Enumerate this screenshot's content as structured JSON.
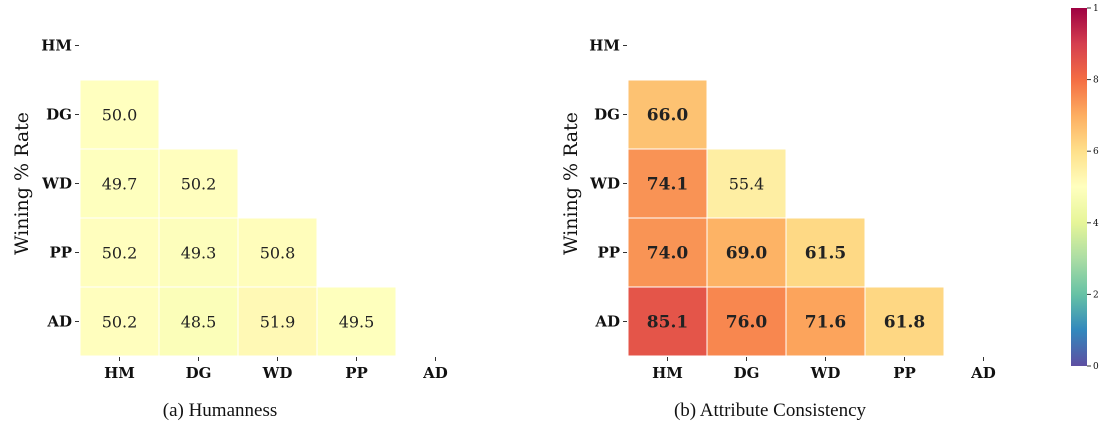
{
  "chart_data": [
    {
      "type": "heatmap",
      "caption": "(a) Humanness",
      "ylabel": "Wining % Rate",
      "row_labels": [
        "HM",
        "DG",
        "WD",
        "PP",
        "AD"
      ],
      "col_labels": [
        "HM",
        "DG",
        "WD",
        "PP",
        "AD"
      ],
      "bold_values": false,
      "values": [
        [
          null,
          null,
          null,
          null,
          null
        ],
        [
          50.0,
          null,
          null,
          null,
          null
        ],
        [
          49.7,
          50.2,
          null,
          null,
          null
        ],
        [
          50.2,
          49.3,
          50.8,
          null,
          null
        ],
        [
          50.2,
          48.5,
          51.9,
          49.5,
          null
        ]
      ]
    },
    {
      "type": "heatmap",
      "caption": "(b) Attribute Consistency",
      "ylabel": "Wining % Rate",
      "row_labels": [
        "HM",
        "DG",
        "WD",
        "PP",
        "AD"
      ],
      "col_labels": [
        "HM",
        "DG",
        "WD",
        "PP",
        "AD"
      ],
      "bold_values": true,
      "bold_threshold": 60,
      "values": [
        [
          null,
          null,
          null,
          null,
          null
        ],
        [
          66.0,
          null,
          null,
          null,
          null
        ],
        [
          74.1,
          55.4,
          null,
          null,
          null
        ],
        [
          74.0,
          69.0,
          61.5,
          null,
          null
        ],
        [
          85.1,
          76.0,
          71.6,
          61.8,
          null
        ]
      ]
    }
  ],
  "colorbar": {
    "colormap": "Spectral_r",
    "range": [
      0,
      100
    ],
    "ticks": [
      "0",
      "20",
      "40",
      "60",
      "80",
      "100"
    ]
  }
}
